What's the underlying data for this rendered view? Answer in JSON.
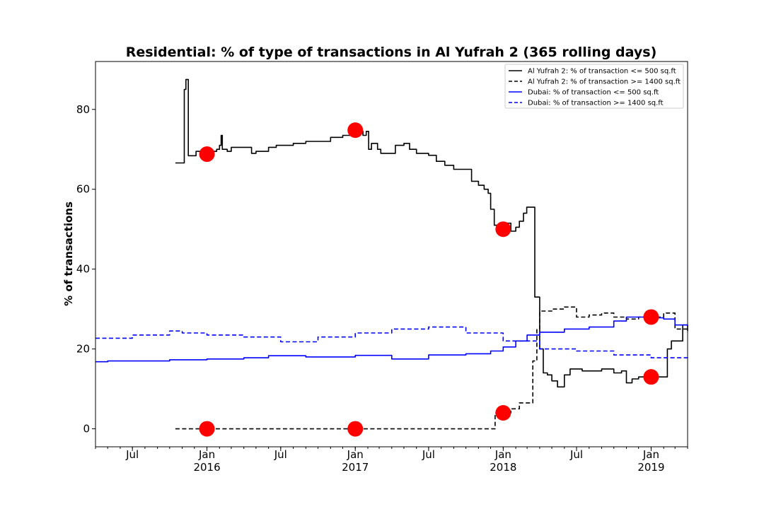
{
  "chart_data": {
    "type": "line",
    "title": "Residential: % of type of transactions in Al Yufrah 2 (365 rolling days)",
    "ylabel": "% of transactions",
    "xlabel": "",
    "xlim": [
      "2015-04-01",
      "2019-04-01"
    ],
    "ylim": [
      -4.5,
      92
    ],
    "y_ticks": [
      0,
      20,
      40,
      60,
      80
    ],
    "x_ticks": [
      {
        "date": "2015-07-01",
        "label": "Jul",
        "sublabel": ""
      },
      {
        "date": "2016-01-01",
        "label": "Jan",
        "sublabel": "2016"
      },
      {
        "date": "2016-07-01",
        "label": "Jul",
        "sublabel": ""
      },
      {
        "date": "2017-01-01",
        "label": "Jan",
        "sublabel": "2017"
      },
      {
        "date": "2017-07-01",
        "label": "Jul",
        "sublabel": ""
      },
      {
        "date": "2018-01-01",
        "label": "Jan",
        "sublabel": "2018"
      },
      {
        "date": "2018-07-01",
        "label": "Jul",
        "sublabel": ""
      },
      {
        "date": "2019-01-01",
        "label": "Jan",
        "sublabel": "2019"
      }
    ],
    "grid": false,
    "legend_position": "top-right",
    "series": [
      {
        "name": "Al Yufrah 2: % of transaction <= 500 sq.ft",
        "color": "#000000",
        "style": "solid",
        "points": [
          [
            "2015-10-15",
            66.6
          ],
          [
            "2015-11-05",
            66.6
          ],
          [
            "2015-11-06",
            85.0
          ],
          [
            "2015-11-10",
            87.5
          ],
          [
            "2015-11-14",
            87.5
          ],
          [
            "2015-11-16",
            68.4
          ],
          [
            "2015-12-01",
            68.4
          ],
          [
            "2015-12-05",
            69.5
          ],
          [
            "2016-01-05",
            69.5
          ],
          [
            "2016-01-25",
            70.0
          ],
          [
            "2016-02-01",
            71.0
          ],
          [
            "2016-02-05",
            73.5
          ],
          [
            "2016-02-08",
            70.0
          ],
          [
            "2016-02-20",
            69.5
          ],
          [
            "2016-03-01",
            70.5
          ],
          [
            "2016-03-20",
            70.5
          ],
          [
            "2016-04-15",
            70.5
          ],
          [
            "2016-04-20",
            69.0
          ],
          [
            "2016-05-01",
            69.5
          ],
          [
            "2016-05-20",
            69.5
          ],
          [
            "2016-06-01",
            70.5
          ],
          [
            "2016-06-20",
            71.0
          ],
          [
            "2016-07-15",
            71.0
          ],
          [
            "2016-08-01",
            71.5
          ],
          [
            "2016-09-01",
            72.0
          ],
          [
            "2016-10-01",
            72.0
          ],
          [
            "2016-11-01",
            73.0
          ],
          [
            "2016-12-01",
            73.5
          ],
          [
            "2017-01-01",
            74.5
          ],
          [
            "2017-01-20",
            73.5
          ],
          [
            "2017-01-28",
            74.5
          ],
          [
            "2017-02-03",
            70.0
          ],
          [
            "2017-02-10",
            71.5
          ],
          [
            "2017-02-25",
            70.0
          ],
          [
            "2017-03-05",
            69.0
          ],
          [
            "2017-04-01",
            69.0
          ],
          [
            "2017-04-10",
            71.0
          ],
          [
            "2017-05-01",
            71.5
          ],
          [
            "2017-05-15",
            70.0
          ],
          [
            "2017-06-01",
            69.0
          ],
          [
            "2017-07-01",
            68.5
          ],
          [
            "2017-07-20",
            67.0
          ],
          [
            "2017-08-10",
            66.0
          ],
          [
            "2017-09-01",
            65.0
          ],
          [
            "2017-10-01",
            65.0
          ],
          [
            "2017-10-15",
            62.0
          ],
          [
            "2017-11-01",
            61.0
          ],
          [
            "2017-11-15",
            60.0
          ],
          [
            "2017-11-25",
            59.0
          ],
          [
            "2017-12-01",
            55.0
          ],
          [
            "2017-12-10",
            51.0
          ],
          [
            "2017-12-20",
            50.0
          ],
          [
            "2018-01-01",
            51.0
          ],
          [
            "2018-01-10",
            51.5
          ],
          [
            "2018-01-20",
            49.5
          ],
          [
            "2018-02-01",
            50.5
          ],
          [
            "2018-02-10",
            52.0
          ],
          [
            "2018-02-20",
            54.0
          ],
          [
            "2018-02-28",
            55.5
          ],
          [
            "2018-03-08",
            55.5
          ],
          [
            "2018-03-20",
            33.0
          ],
          [
            "2018-04-01",
            20.0
          ],
          [
            "2018-04-10",
            14.0
          ],
          [
            "2018-04-20",
            13.5
          ],
          [
            "2018-05-01",
            12.0
          ],
          [
            "2018-05-15",
            10.5
          ],
          [
            "2018-06-01",
            13.5
          ],
          [
            "2018-06-15",
            15.0
          ],
          [
            "2018-07-15",
            14.5
          ],
          [
            "2018-09-01",
            15.0
          ],
          [
            "2018-10-01",
            14.0
          ],
          [
            "2018-10-20",
            14.5
          ],
          [
            "2018-11-01",
            11.5
          ],
          [
            "2018-11-15",
            12.5
          ],
          [
            "2018-12-01",
            13.0
          ],
          [
            "2019-01-01",
            13.0
          ],
          [
            "2019-02-05",
            13.0
          ],
          [
            "2019-02-10",
            20.0
          ],
          [
            "2019-02-20",
            22.0
          ],
          [
            "2019-03-10",
            22.0
          ],
          [
            "2019-03-20",
            26.0
          ],
          [
            "2019-04-01",
            24.5
          ]
        ]
      },
      {
        "name": "Al Yufrah 2: % of transaction >= 1400 sq.ft",
        "color": "#000000",
        "style": "dashed",
        "points": [
          [
            "2015-10-15",
            0.0
          ],
          [
            "2017-12-10",
            0.0
          ],
          [
            "2017-12-12",
            4.0
          ],
          [
            "2018-01-01",
            4.0
          ],
          [
            "2018-01-20",
            5.0
          ],
          [
            "2018-02-10",
            6.5
          ],
          [
            "2018-03-01",
            6.5
          ],
          [
            "2018-03-15",
            17.0
          ],
          [
            "2018-03-25",
            25.0
          ],
          [
            "2018-04-01",
            29.5
          ],
          [
            "2018-05-01",
            30.0
          ],
          [
            "2018-06-01",
            30.5
          ],
          [
            "2018-07-01",
            28.0
          ],
          [
            "2018-08-01",
            28.5
          ],
          [
            "2018-09-01",
            29.0
          ],
          [
            "2018-10-01",
            28.0
          ],
          [
            "2018-11-01",
            27.5
          ],
          [
            "2018-12-01",
            28.0
          ],
          [
            "2019-01-01",
            28.0
          ],
          [
            "2019-02-01",
            29.0
          ],
          [
            "2019-02-15",
            29.0
          ],
          [
            "2019-03-01",
            25.0
          ],
          [
            "2019-04-01",
            25.5
          ]
        ]
      },
      {
        "name": "Dubai: % of transaction <= 500 sq.ft",
        "color": "#0000ff",
        "style": "solid",
        "points": [
          [
            "2015-04-01",
            16.8
          ],
          [
            "2015-05-01",
            17.0
          ],
          [
            "2015-07-01",
            17.0
          ],
          [
            "2015-10-01",
            17.3
          ],
          [
            "2016-01-01",
            17.5
          ],
          [
            "2016-04-01",
            17.8
          ],
          [
            "2016-06-01",
            18.3
          ],
          [
            "2016-09-01",
            18.0
          ],
          [
            "2017-01-01",
            18.4
          ],
          [
            "2017-04-01",
            17.5
          ],
          [
            "2017-07-01",
            18.5
          ],
          [
            "2017-10-01",
            18.8
          ],
          [
            "2017-12-01",
            19.5
          ],
          [
            "2018-01-01",
            20.5
          ],
          [
            "2018-02-01",
            22.0
          ],
          [
            "2018-03-01",
            23.5
          ],
          [
            "2018-04-01",
            24.2
          ],
          [
            "2018-06-01",
            25.0
          ],
          [
            "2018-08-01",
            25.5
          ],
          [
            "2018-10-01",
            27.0
          ],
          [
            "2018-11-01",
            28.0
          ],
          [
            "2019-01-01",
            27.8
          ],
          [
            "2019-02-01",
            27.5
          ],
          [
            "2019-03-01",
            26.0
          ],
          [
            "2019-04-01",
            25.8
          ]
        ]
      },
      {
        "name": "Dubai: % of transaction >= 1400 sq.ft",
        "color": "#0000ff",
        "style": "dashed",
        "points": [
          [
            "2015-04-01",
            22.7
          ],
          [
            "2015-07-01",
            23.5
          ],
          [
            "2015-10-01",
            24.5
          ],
          [
            "2015-11-01",
            24.0
          ],
          [
            "2016-01-01",
            23.5
          ],
          [
            "2016-04-01",
            23.0
          ],
          [
            "2016-07-01",
            21.8
          ],
          [
            "2016-10-01",
            23.0
          ],
          [
            "2017-01-01",
            24.0
          ],
          [
            "2017-04-01",
            25.0
          ],
          [
            "2017-07-01",
            25.5
          ],
          [
            "2017-10-01",
            24.0
          ],
          [
            "2018-01-01",
            22.0
          ],
          [
            "2018-04-01",
            20.0
          ],
          [
            "2018-07-01",
            19.5
          ],
          [
            "2018-10-01",
            18.5
          ],
          [
            "2019-01-01",
            17.8
          ],
          [
            "2019-04-01",
            18.0
          ]
        ]
      }
    ],
    "markers": [
      {
        "date": "2016-01-01",
        "value": 68.8,
        "color": "#ff0000"
      },
      {
        "date": "2017-01-01",
        "value": 74.8,
        "color": "#ff0000"
      },
      {
        "date": "2018-01-01",
        "value": 50.0,
        "color": "#ff0000"
      },
      {
        "date": "2019-01-01",
        "value": 28.0,
        "color": "#ff0000"
      },
      {
        "date": "2016-01-01",
        "value": 0.0,
        "color": "#ff0000"
      },
      {
        "date": "2017-01-01",
        "value": 0.0,
        "color": "#ff0000"
      },
      {
        "date": "2018-01-01",
        "value": 4.0,
        "color": "#ff0000"
      },
      {
        "date": "2019-01-01",
        "value": 13.0,
        "color": "#ff0000"
      }
    ]
  }
}
